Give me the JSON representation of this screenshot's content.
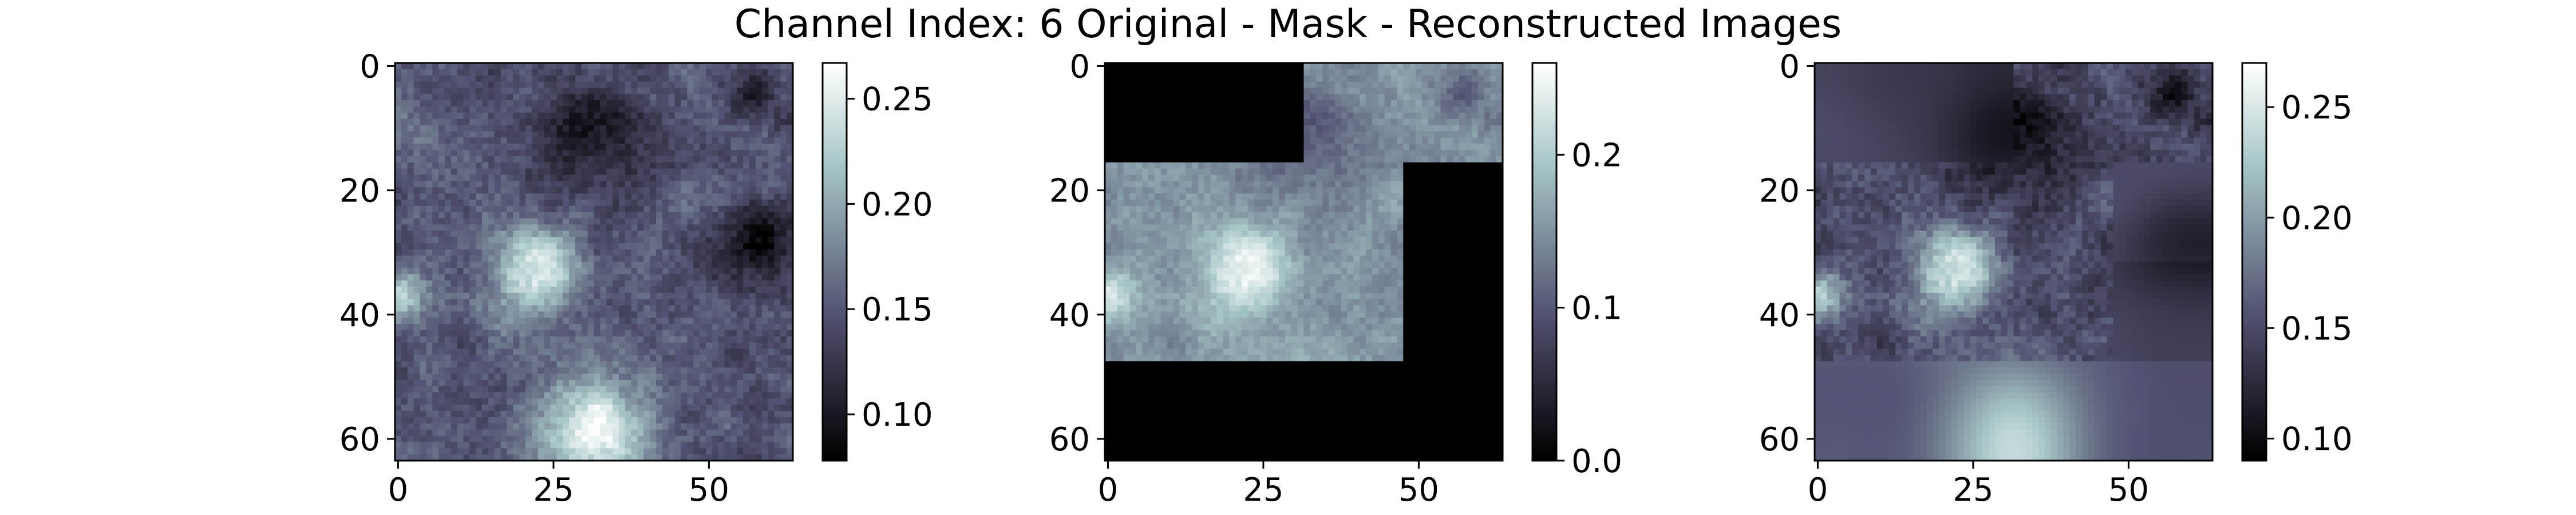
{
  "figure": {
    "title": "Channel Index: 6 Original - Mask - Reconstructed Images"
  },
  "chart_data": [
    {
      "type": "heatmap",
      "title": "",
      "xlabel": "",
      "ylabel": "",
      "x_ticks": [
        0,
        25,
        50
      ],
      "y_ticks": [
        0,
        20,
        40,
        60
      ],
      "xlim": [
        -0.5,
        63.5
      ],
      "ylim": [
        63.5,
        -0.5
      ],
      "grid_size": [
        64,
        64
      ],
      "colormap": "bone",
      "colorbar": {
        "range": [
          0.078,
          0.267
        ],
        "ticks": [
          0.1,
          0.15,
          0.2,
          0.25
        ],
        "tick_labels": [
          "0.10",
          "0.15",
          "0.20",
          "0.25"
        ]
      },
      "features": {
        "bright_blobs": [
          {
            "x": 22,
            "y": 33,
            "radius": 7,
            "peak": 0.255
          },
          {
            "x": 31,
            "y": 59,
            "radius": 9,
            "peak": 0.26
          },
          {
            "x": 0,
            "y": 37,
            "radius": 5,
            "peak": 0.22
          }
        ],
        "dark_regions": [
          {
            "x": 57,
            "y": 29,
            "radius": 7,
            "min": 0.085
          },
          {
            "x": 30,
            "y": 12,
            "radius": 9,
            "min": 0.105
          },
          {
            "x": 57,
            "y": 4,
            "radius": 4,
            "min": 0.1
          }
        ],
        "base_level": 0.15
      }
    },
    {
      "type": "heatmap",
      "title": "",
      "xlabel": "",
      "ylabel": "",
      "x_ticks": [
        0,
        25,
        50
      ],
      "y_ticks": [
        0,
        20,
        40,
        60
      ],
      "xlim": [
        -0.5,
        63.5
      ],
      "ylim": [
        63.5,
        -0.5
      ],
      "grid_size": [
        64,
        64
      ],
      "colormap": "bone",
      "colorbar": {
        "range": [
          0.0,
          0.26
        ],
        "ticks": [
          0.0,
          0.1,
          0.2
        ],
        "tick_labels": [
          "0.0",
          "0.1",
          "0.2"
        ]
      },
      "mask_patch_size": 16,
      "masked_patches": [
        [
          1,
          1,
          0,
          0
        ],
        [
          0,
          0,
          0,
          1
        ],
        [
          0,
          0,
          0,
          1
        ],
        [
          1,
          1,
          1,
          1
        ]
      ]
    },
    {
      "type": "heatmap",
      "title": "",
      "xlabel": "",
      "ylabel": "",
      "x_ticks": [
        0,
        25,
        50
      ],
      "y_ticks": [
        0,
        20,
        40,
        60
      ],
      "xlim": [
        -0.5,
        63.5
      ],
      "ylim": [
        63.5,
        -0.5
      ],
      "grid_size": [
        64,
        64
      ],
      "colormap": "bone",
      "colorbar": {
        "range": [
          0.09,
          0.27
        ],
        "ticks": [
          0.1,
          0.15,
          0.2,
          0.25
        ],
        "tick_labels": [
          "0.10",
          "0.15",
          "0.20",
          "0.25"
        ]
      },
      "reconstruction": "visible patches keep original texture; masked patches are smooth blurred estimates"
    }
  ]
}
